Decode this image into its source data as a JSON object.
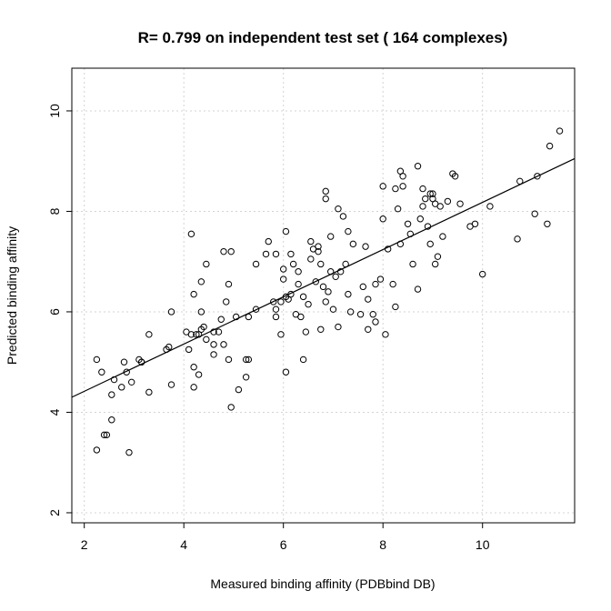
{
  "chart_data": {
    "type": "scatter",
    "title": "R= 0.799 on independent test set ( 164  complexes)",
    "xlabel": "Measured binding affinity (PDBbind DB)",
    "ylabel": "Predicted binding affinity",
    "xlim": [
      1.75,
      11.85
    ],
    "ylim": [
      1.8,
      10.85
    ],
    "xticks": [
      2,
      4,
      6,
      8,
      10
    ],
    "yticks": [
      2,
      4,
      6,
      8,
      10
    ],
    "grid": true,
    "fit_line": {
      "x": [
        1.75,
        11.85
      ],
      "y": [
        4.3,
        9.05
      ]
    },
    "points": [
      [
        2.25,
        5.05
      ],
      [
        2.35,
        4.8
      ],
      [
        2.4,
        3.55
      ],
      [
        2.45,
        3.55
      ],
      [
        2.25,
        3.25
      ],
      [
        2.55,
        3.85
      ],
      [
        2.55,
        4.35
      ],
      [
        2.6,
        4.65
      ],
      [
        2.75,
        4.5
      ],
      [
        2.8,
        5.0
      ],
      [
        2.85,
        4.8
      ],
      [
        2.9,
        3.2
      ],
      [
        2.95,
        4.6
      ],
      [
        3.1,
        5.05
      ],
      [
        3.15,
        5.0
      ],
      [
        3.3,
        5.55
      ],
      [
        3.3,
        4.4
      ],
      [
        3.65,
        5.25
      ],
      [
        3.7,
        5.3
      ],
      [
        3.75,
        6.0
      ],
      [
        3.75,
        4.55
      ],
      [
        4.05,
        5.6
      ],
      [
        4.1,
        5.25
      ],
      [
        4.15,
        5.55
      ],
      [
        4.2,
        4.5
      ],
      [
        4.2,
        4.9
      ],
      [
        4.25,
        5.55
      ],
      [
        4.3,
        5.55
      ],
      [
        4.3,
        4.75
      ],
      [
        4.35,
        6.0
      ],
      [
        4.35,
        5.65
      ],
      [
        4.4,
        5.7
      ],
      [
        4.45,
        6.95
      ],
      [
        4.45,
        5.45
      ],
      [
        4.15,
        7.55
      ],
      [
        4.2,
        6.35
      ],
      [
        4.35,
        6.6
      ],
      [
        4.6,
        5.35
      ],
      [
        4.6,
        5.15
      ],
      [
        4.7,
        5.6
      ],
      [
        4.75,
        5.85
      ],
      [
        4.8,
        7.2
      ],
      [
        4.8,
        5.35
      ],
      [
        4.85,
        6.2
      ],
      [
        4.9,
        6.55
      ],
      [
        4.95,
        7.2
      ],
      [
        4.9,
        5.05
      ],
      [
        4.95,
        4.1
      ],
      [
        5.05,
        5.9
      ],
      [
        5.1,
        4.45
      ],
      [
        5.25,
        4.7
      ],
      [
        5.25,
        5.05
      ],
      [
        5.3,
        5.05
      ],
      [
        5.3,
        5.9
      ],
      [
        5.45,
        6.95
      ],
      [
        5.45,
        6.05
      ],
      [
        5.65,
        7.15
      ],
      [
        5.7,
        7.4
      ],
      [
        5.8,
        6.2
      ],
      [
        5.85,
        7.15
      ],
      [
        5.85,
        5.9
      ],
      [
        5.95,
        6.2
      ],
      [
        5.95,
        5.55
      ],
      [
        6.0,
        6.85
      ],
      [
        6.0,
        6.65
      ],
      [
        6.05,
        7.6
      ],
      [
        6.05,
        4.8
      ],
      [
        6.05,
        6.3
      ],
      [
        6.1,
        6.25
      ],
      [
        6.15,
        6.35
      ],
      [
        6.15,
        7.15
      ],
      [
        6.2,
        6.95
      ],
      [
        6.3,
        6.8
      ],
      [
        6.3,
        6.55
      ],
      [
        6.35,
        5.9
      ],
      [
        6.4,
        6.3
      ],
      [
        6.4,
        5.05
      ],
      [
        6.45,
        5.6
      ],
      [
        6.5,
        6.15
      ],
      [
        6.55,
        7.05
      ],
      [
        6.55,
        7.4
      ],
      [
        6.6,
        7.25
      ],
      [
        6.65,
        6.6
      ],
      [
        6.7,
        7.3
      ],
      [
        6.7,
        7.2
      ],
      [
        6.75,
        6.95
      ],
      [
        6.75,
        5.65
      ],
      [
        6.8,
        6.5
      ],
      [
        6.85,
        8.25
      ],
      [
        6.85,
        8.4
      ],
      [
        6.85,
        6.2
      ],
      [
        6.9,
        6.4
      ],
      [
        6.95,
        7.5
      ],
      [
        6.95,
        6.8
      ],
      [
        7.0,
        6.05
      ],
      [
        7.05,
        6.7
      ],
      [
        7.1,
        8.05
      ],
      [
        7.1,
        5.7
      ],
      [
        7.15,
        6.8
      ],
      [
        7.2,
        7.9
      ],
      [
        7.25,
        6.95
      ],
      [
        7.3,
        7.6
      ],
      [
        7.3,
        6.35
      ],
      [
        7.35,
        6.0
      ],
      [
        7.4,
        7.35
      ],
      [
        7.55,
        5.95
      ],
      [
        7.65,
        7.3
      ],
      [
        7.7,
        5.65
      ],
      [
        7.7,
        6.25
      ],
      [
        7.8,
        5.95
      ],
      [
        7.85,
        6.55
      ],
      [
        7.85,
        5.8
      ],
      [
        7.95,
        6.65
      ],
      [
        8.0,
        8.5
      ],
      [
        8.0,
        7.85
      ],
      [
        8.05,
        5.55
      ],
      [
        8.1,
        7.25
      ],
      [
        8.2,
        6.55
      ],
      [
        8.25,
        8.45
      ],
      [
        8.25,
        6.1
      ],
      [
        8.3,
        8.05
      ],
      [
        8.35,
        8.8
      ],
      [
        8.35,
        7.35
      ],
      [
        8.4,
        8.7
      ],
      [
        8.4,
        8.5
      ],
      [
        8.5,
        7.75
      ],
      [
        8.55,
        7.55
      ],
      [
        8.6,
        6.95
      ],
      [
        8.7,
        8.9
      ],
      [
        8.7,
        6.45
      ],
      [
        8.75,
        7.85
      ],
      [
        8.8,
        8.1
      ],
      [
        8.8,
        8.45
      ],
      [
        8.85,
        8.25
      ],
      [
        8.9,
        7.7
      ],
      [
        8.95,
        7.35
      ],
      [
        9.0,
        8.35
      ],
      [
        9.0,
        8.25
      ],
      [
        9.05,
        8.15
      ],
      [
        9.05,
        6.95
      ],
      [
        9.1,
        7.1
      ],
      [
        9.15,
        8.1
      ],
      [
        9.2,
        7.5
      ],
      [
        9.3,
        8.2
      ],
      [
        9.4,
        8.75
      ],
      [
        9.45,
        8.7
      ],
      [
        9.55,
        8.15
      ],
      [
        9.75,
        7.7
      ],
      [
        9.85,
        7.75
      ],
      [
        10.0,
        6.75
      ],
      [
        10.15,
        8.1
      ],
      [
        10.7,
        7.45
      ],
      [
        10.75,
        8.6
      ],
      [
        11.05,
        7.95
      ],
      [
        11.1,
        8.7
      ],
      [
        11.3,
        7.75
      ],
      [
        11.35,
        9.3
      ],
      [
        11.55,
        9.6
      ],
      [
        4.6,
        5.6
      ],
      [
        6.25,
        5.95
      ],
      [
        5.85,
        6.05
      ],
      [
        7.6,
        6.5
      ],
      [
        8.95,
        8.35
      ],
      [
        3.15,
        5.0
      ]
    ]
  }
}
